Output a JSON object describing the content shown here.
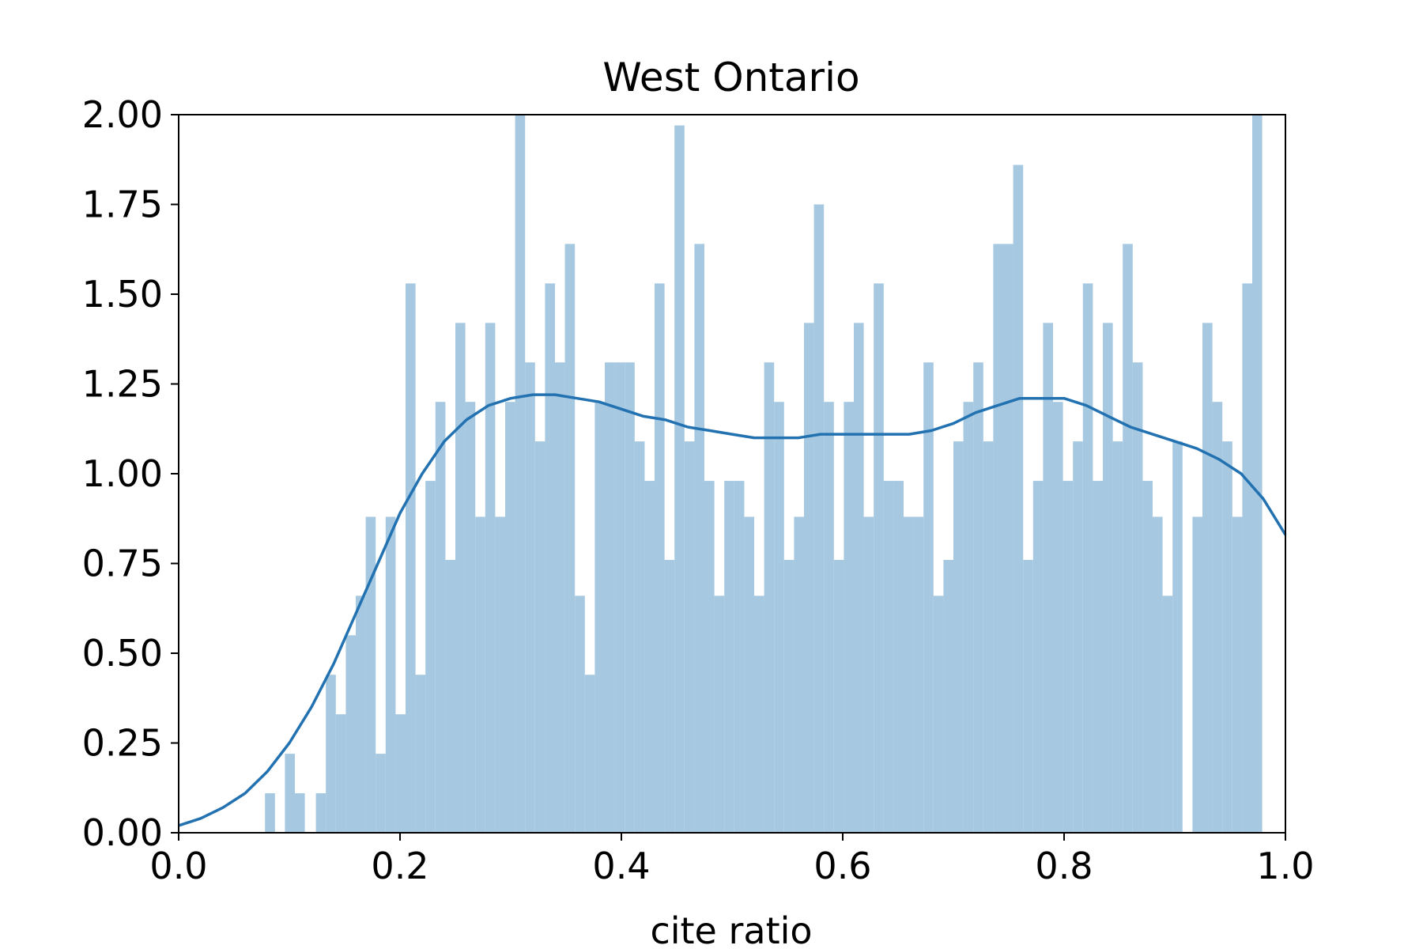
{
  "chart_data": {
    "type": "bar",
    "title": "West Ontario",
    "xlabel": "cite ratio",
    "ylabel": "",
    "xlim": [
      0.0,
      1.0
    ],
    "ylim": [
      0.0,
      2.0
    ],
    "x_ticks": [
      "0.0",
      "0.2",
      "0.4",
      "0.6",
      "0.8",
      "1.0"
    ],
    "y_ticks": [
      "0.00",
      "0.25",
      "0.50",
      "0.75",
      "1.00",
      "1.25",
      "1.50",
      "1.75",
      "2.00"
    ],
    "grid": false,
    "bin_width": 0.009,
    "bar_color": "#a6c8e0",
    "line_color": "#2271b1",
    "bins": [
      {
        "x": 0.078,
        "y": 0.11
      },
      {
        "x": 0.096,
        "y": 0.22
      },
      {
        "x": 0.105,
        "y": 0.11
      },
      {
        "x": 0.124,
        "y": 0.11
      },
      {
        "x": 0.133,
        "y": 0.44
      },
      {
        "x": 0.142,
        "y": 0.33
      },
      {
        "x": 0.151,
        "y": 0.55
      },
      {
        "x": 0.16,
        "y": 0.66
      },
      {
        "x": 0.169,
        "y": 0.88
      },
      {
        "x": 0.178,
        "y": 0.22
      },
      {
        "x": 0.187,
        "y": 0.88
      },
      {
        "x": 0.196,
        "y": 0.33
      },
      {
        "x": 0.205,
        "y": 1.53
      },
      {
        "x": 0.214,
        "y": 0.44
      },
      {
        "x": 0.223,
        "y": 0.98
      },
      {
        "x": 0.232,
        "y": 1.2
      },
      {
        "x": 0.241,
        "y": 0.76
      },
      {
        "x": 0.25,
        "y": 1.42
      },
      {
        "x": 0.259,
        "y": 1.2
      },
      {
        "x": 0.268,
        "y": 0.88
      },
      {
        "x": 0.277,
        "y": 1.42
      },
      {
        "x": 0.286,
        "y": 0.88
      },
      {
        "x": 0.295,
        "y": 1.2
      },
      {
        "x": 0.304,
        "y": 2.0
      },
      {
        "x": 0.313,
        "y": 1.31
      },
      {
        "x": 0.322,
        "y": 1.09
      },
      {
        "x": 0.331,
        "y": 1.53
      },
      {
        "x": 0.34,
        "y": 1.31
      },
      {
        "x": 0.349,
        "y": 1.64
      },
      {
        "x": 0.358,
        "y": 0.66
      },
      {
        "x": 0.367,
        "y": 0.44
      },
      {
        "x": 0.376,
        "y": 1.2
      },
      {
        "x": 0.385,
        "y": 1.31
      },
      {
        "x": 0.394,
        "y": 1.31
      },
      {
        "x": 0.403,
        "y": 1.31
      },
      {
        "x": 0.412,
        "y": 1.09
      },
      {
        "x": 0.421,
        "y": 0.98
      },
      {
        "x": 0.43,
        "y": 1.53
      },
      {
        "x": 0.439,
        "y": 0.76
      },
      {
        "x": 0.448,
        "y": 1.97
      },
      {
        "x": 0.457,
        "y": 1.09
      },
      {
        "x": 0.466,
        "y": 1.64
      },
      {
        "x": 0.475,
        "y": 0.98
      },
      {
        "x": 0.484,
        "y": 0.66
      },
      {
        "x": 0.493,
        "y": 0.98
      },
      {
        "x": 0.502,
        "y": 0.98
      },
      {
        "x": 0.511,
        "y": 0.88
      },
      {
        "x": 0.52,
        "y": 0.66
      },
      {
        "x": 0.529,
        "y": 1.31
      },
      {
        "x": 0.538,
        "y": 1.2
      },
      {
        "x": 0.547,
        "y": 0.76
      },
      {
        "x": 0.556,
        "y": 0.88
      },
      {
        "x": 0.565,
        "y": 1.42
      },
      {
        "x": 0.574,
        "y": 1.75
      },
      {
        "x": 0.583,
        "y": 1.2
      },
      {
        "x": 0.592,
        "y": 0.76
      },
      {
        "x": 0.601,
        "y": 1.2
      },
      {
        "x": 0.61,
        "y": 1.42
      },
      {
        "x": 0.619,
        "y": 0.88
      },
      {
        "x": 0.628,
        "y": 1.53
      },
      {
        "x": 0.637,
        "y": 0.98
      },
      {
        "x": 0.646,
        "y": 0.98
      },
      {
        "x": 0.655,
        "y": 0.88
      },
      {
        "x": 0.664,
        "y": 0.88
      },
      {
        "x": 0.673,
        "y": 1.31
      },
      {
        "x": 0.682,
        "y": 0.66
      },
      {
        "x": 0.691,
        "y": 0.76
      },
      {
        "x": 0.7,
        "y": 1.09
      },
      {
        "x": 0.709,
        "y": 1.2
      },
      {
        "x": 0.718,
        "y": 1.31
      },
      {
        "x": 0.727,
        "y": 1.09
      },
      {
        "x": 0.736,
        "y": 1.64
      },
      {
        "x": 0.745,
        "y": 1.64
      },
      {
        "x": 0.754,
        "y": 1.86
      },
      {
        "x": 0.763,
        "y": 0.76
      },
      {
        "x": 0.772,
        "y": 0.98
      },
      {
        "x": 0.781,
        "y": 1.42
      },
      {
        "x": 0.79,
        "y": 1.2
      },
      {
        "x": 0.799,
        "y": 0.98
      },
      {
        "x": 0.808,
        "y": 1.09
      },
      {
        "x": 0.817,
        "y": 1.53
      },
      {
        "x": 0.826,
        "y": 0.98
      },
      {
        "x": 0.835,
        "y": 1.42
      },
      {
        "x": 0.844,
        "y": 1.09
      },
      {
        "x": 0.853,
        "y": 1.64
      },
      {
        "x": 0.862,
        "y": 1.31
      },
      {
        "x": 0.871,
        "y": 0.98
      },
      {
        "x": 0.88,
        "y": 0.88
      },
      {
        "x": 0.889,
        "y": 0.66
      },
      {
        "x": 0.898,
        "y": 1.09
      },
      {
        "x": 0.907,
        "y": 0.0
      },
      {
        "x": 0.916,
        "y": 0.88
      },
      {
        "x": 0.925,
        "y": 1.42
      },
      {
        "x": 0.934,
        "y": 1.2
      },
      {
        "x": 0.943,
        "y": 1.09
      },
      {
        "x": 0.952,
        "y": 0.88
      },
      {
        "x": 0.961,
        "y": 1.53
      },
      {
        "x": 0.97,
        "y": 2.0
      }
    ],
    "kde": {
      "x": [
        0.0,
        0.02,
        0.04,
        0.06,
        0.08,
        0.1,
        0.12,
        0.14,
        0.16,
        0.18,
        0.2,
        0.22,
        0.24,
        0.26,
        0.28,
        0.3,
        0.32,
        0.34,
        0.36,
        0.38,
        0.4,
        0.42,
        0.44,
        0.46,
        0.48,
        0.5,
        0.52,
        0.54,
        0.56,
        0.58,
        0.6,
        0.62,
        0.64,
        0.66,
        0.68,
        0.7,
        0.72,
        0.74,
        0.76,
        0.78,
        0.8,
        0.82,
        0.84,
        0.86,
        0.88,
        0.9,
        0.92,
        0.94,
        0.96,
        0.98,
        1.0
      ],
      "y": [
        0.02,
        0.04,
        0.07,
        0.11,
        0.17,
        0.25,
        0.35,
        0.47,
        0.61,
        0.75,
        0.89,
        1.0,
        1.09,
        1.15,
        1.19,
        1.21,
        1.22,
        1.22,
        1.21,
        1.2,
        1.18,
        1.16,
        1.15,
        1.13,
        1.12,
        1.11,
        1.1,
        1.1,
        1.1,
        1.11,
        1.11,
        1.11,
        1.11,
        1.11,
        1.12,
        1.14,
        1.17,
        1.19,
        1.21,
        1.21,
        1.21,
        1.19,
        1.16,
        1.13,
        1.11,
        1.09,
        1.07,
        1.04,
        1.0,
        0.93,
        0.83
      ]
    }
  }
}
